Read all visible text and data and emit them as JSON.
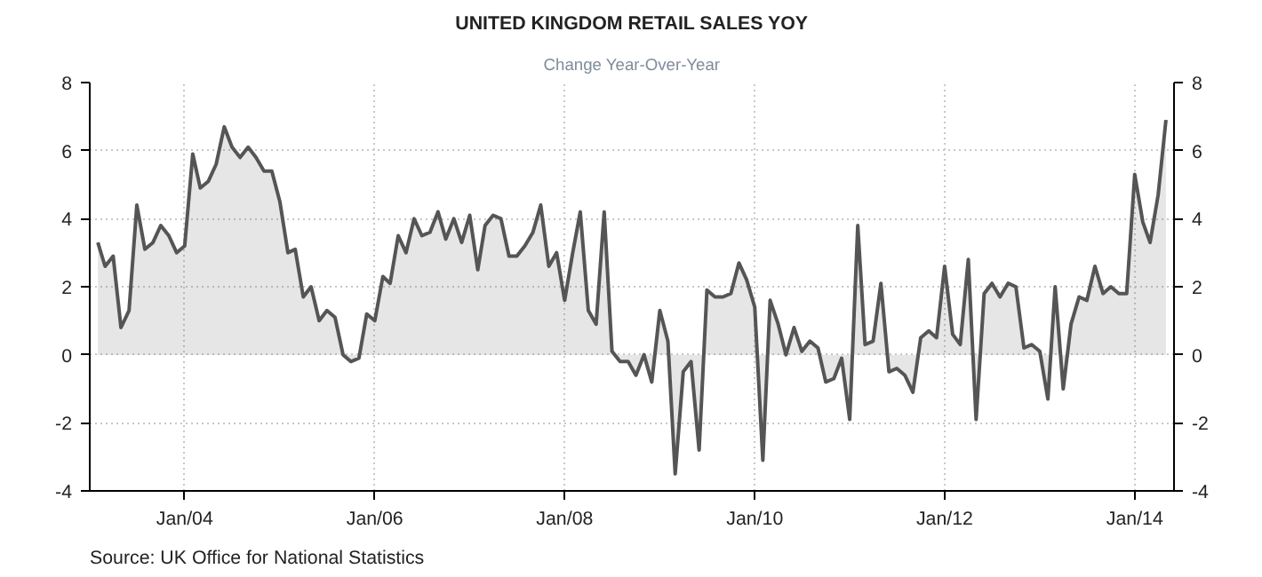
{
  "chart_data": {
    "type": "area",
    "title": "UNITED KINGDOM RETAIL SALES YOY",
    "subtitle": "Change Year-Over-Year",
    "annotations": [
      "Source: UK Office for National Statistics"
    ],
    "xlim": [
      "2003-01",
      "2014-06"
    ],
    "xticks": [
      {
        "value": "2004-01",
        "label": "Jan/04"
      },
      {
        "value": "2006-01",
        "label": "Jan/06"
      },
      {
        "value": "2008-01",
        "label": "Jan/08"
      },
      {
        "value": "2010-01",
        "label": "Jan/10"
      },
      {
        "value": "2012-01",
        "label": "Jan/12"
      },
      {
        "value": "2014-01",
        "label": "Jan/14"
      }
    ],
    "ylim": [
      -4,
      8
    ],
    "yticks": [
      -4,
      -2,
      0,
      2,
      4,
      6,
      8
    ],
    "y2lim": [
      -4,
      8
    ],
    "y2ticks": [
      -4,
      -2,
      0,
      2,
      4,
      6,
      8
    ],
    "grid": true,
    "line_style": "solid",
    "series": [
      {
        "color": "#555555",
        "x": [
          "2003-02",
          "2003-03",
          "2003-04",
          "2003-05",
          "2003-06",
          "2003-07",
          "2003-08",
          "2003-09",
          "2003-10",
          "2003-11",
          "2003-12",
          "2004-01",
          "2004-02",
          "2004-03",
          "2004-04",
          "2004-05",
          "2004-06",
          "2004-07",
          "2004-08",
          "2004-09",
          "2004-10",
          "2004-11",
          "2004-12",
          "2005-01",
          "2005-02",
          "2005-03",
          "2005-04",
          "2005-05",
          "2005-06",
          "2005-07",
          "2005-08",
          "2005-09",
          "2005-10",
          "2005-11",
          "2005-12",
          "2006-01",
          "2006-02",
          "2006-03",
          "2006-04",
          "2006-05",
          "2006-06",
          "2006-07",
          "2006-08",
          "2006-09",
          "2006-10",
          "2006-11",
          "2006-12",
          "2007-01",
          "2007-02",
          "2007-03",
          "2007-04",
          "2007-05",
          "2007-06",
          "2007-07",
          "2007-08",
          "2007-09",
          "2007-10",
          "2007-11",
          "2007-12",
          "2008-01",
          "2008-02",
          "2008-03",
          "2008-04",
          "2008-05",
          "2008-06",
          "2008-07",
          "2008-08",
          "2008-09",
          "2008-10",
          "2008-11",
          "2008-12",
          "2009-01",
          "2009-02",
          "2009-03",
          "2009-04",
          "2009-05",
          "2009-06",
          "2009-07",
          "2009-08",
          "2009-09",
          "2009-10",
          "2009-11",
          "2009-12",
          "2010-01",
          "2010-02",
          "2010-03",
          "2010-04",
          "2010-05",
          "2010-06",
          "2010-07",
          "2010-08",
          "2010-09",
          "2010-10",
          "2010-11",
          "2010-12",
          "2011-01",
          "2011-02",
          "2011-03",
          "2011-04",
          "2011-05",
          "2011-06",
          "2011-07",
          "2011-08",
          "2011-09",
          "2011-10",
          "2011-11",
          "2011-12",
          "2012-01",
          "2012-02",
          "2012-03",
          "2012-04",
          "2012-05",
          "2012-06",
          "2012-07",
          "2012-08",
          "2012-09",
          "2012-10",
          "2012-11",
          "2012-12",
          "2013-01",
          "2013-02",
          "2013-03",
          "2013-04",
          "2013-05",
          "2013-06",
          "2013-07",
          "2013-08",
          "2013-09",
          "2013-10",
          "2013-11",
          "2013-12",
          "2014-01",
          "2014-02",
          "2014-03",
          "2014-04",
          "2014-05"
        ],
        "values": [
          3.3,
          2.6,
          2.9,
          0.8,
          1.3,
          4.4,
          3.1,
          3.3,
          3.8,
          3.5,
          3.0,
          3.2,
          5.9,
          4.9,
          5.1,
          5.6,
          6.7,
          6.1,
          5.8,
          6.1,
          5.8,
          5.4,
          5.4,
          4.5,
          3.0,
          3.1,
          1.7,
          2.0,
          1.0,
          1.3,
          1.1,
          0.0,
          -0.2,
          -0.1,
          1.2,
          1.0,
          2.3,
          2.1,
          3.5,
          3.0,
          4.0,
          3.5,
          3.6,
          4.2,
          3.4,
          4.0,
          3.3,
          4.1,
          2.5,
          3.8,
          4.1,
          4.0,
          2.9,
          2.9,
          3.2,
          3.6,
          4.4,
          2.6,
          3.0,
          1.6,
          3.0,
          4.2,
          1.3,
          0.9,
          4.2,
          0.1,
          -0.2,
          -0.2,
          -0.6,
          0.0,
          -0.8,
          1.3,
          0.4,
          -3.5,
          -0.5,
          -0.2,
          -2.8,
          1.9,
          1.7,
          1.7,
          1.8,
          2.7,
          2.2,
          1.4,
          -3.1,
          1.6,
          0.9,
          0.0,
          0.8,
          0.1,
          0.4,
          0.2,
          -0.8,
          -0.7,
          -0.1,
          -1.9,
          3.8,
          0.3,
          0.4,
          2.1,
          -0.5,
          -0.4,
          -0.6,
          -1.1,
          0.5,
          0.7,
          0.5,
          2.6,
          0.6,
          0.3,
          2.8,
          -1.9,
          1.8,
          2.1,
          1.7,
          2.1,
          2.0,
          0.2,
          0.3,
          0.1,
          -1.3,
          2.0,
          -1.0,
          0.9,
          1.7,
          1.6,
          2.6,
          1.8,
          2.0,
          1.8,
          1.8,
          5.3,
          3.9,
          3.3,
          4.7,
          6.9
        ]
      }
    ]
  }
}
